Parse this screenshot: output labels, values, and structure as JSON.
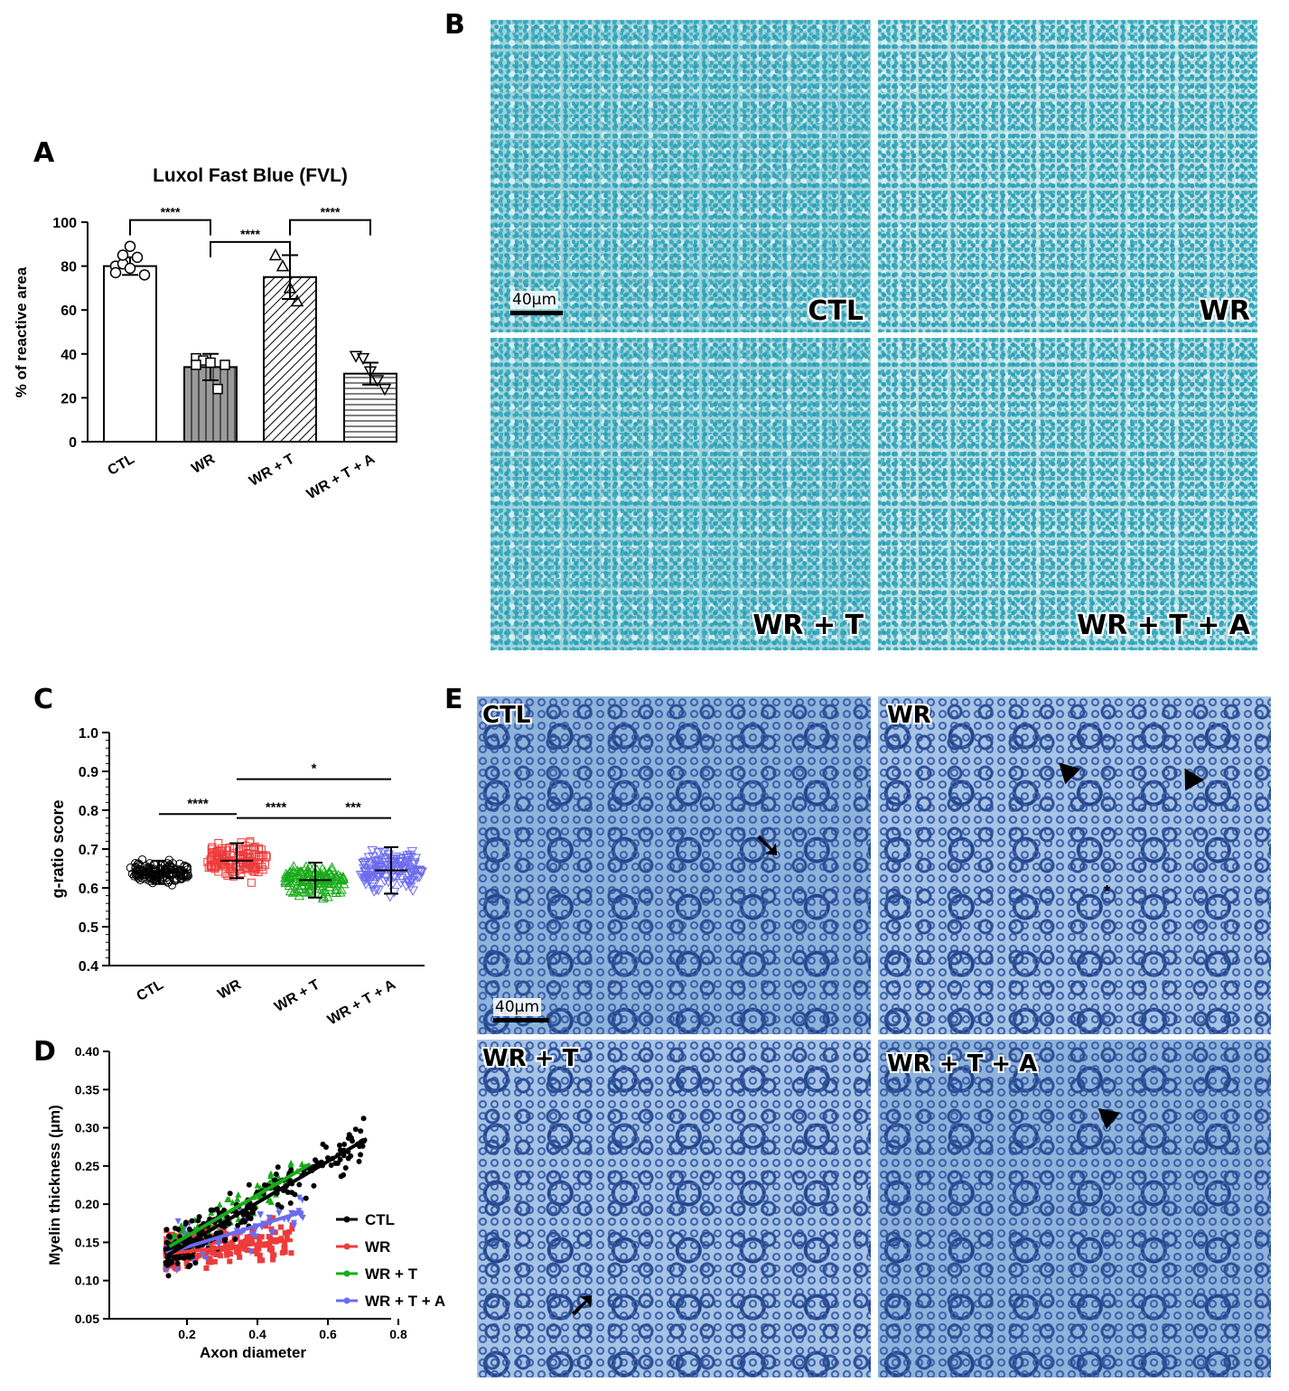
{
  "panels": {
    "A": "A",
    "B": "B",
    "C": "C",
    "D": "D",
    "E": "E"
  },
  "panel_b": {
    "labels": [
      "CTL",
      "WR",
      "WR + T",
      "WR + T + A"
    ],
    "scale": "40μm"
  },
  "panel_e": {
    "labels": [
      "CTL",
      "WR",
      "WR + T",
      "WR + T + A"
    ],
    "scale": "40μm",
    "asterisk": "*"
  },
  "colors": {
    "ctl": "#000000",
    "wr": "#ee3b3b",
    "wrt": "#1aaa1a",
    "wrta": "#6b6bf0",
    "stain_b": "#9fd3da",
    "stain_e": "#8fb3db"
  },
  "chart_data": [
    {
      "id": "A",
      "type": "bar",
      "title": "Luxol Fast Blue (FVL)",
      "ylabel": "% of reactive area",
      "ylim": [
        0,
        100
      ],
      "yticks": [
        "0",
        "20",
        "40",
        "60",
        "80",
        "100"
      ],
      "categories": [
        "CTL",
        "WR",
        "WR + T",
        "WR + T + A"
      ],
      "values": [
        80,
        34,
        75,
        31
      ],
      "errors": [
        4,
        6,
        10,
        5
      ],
      "bar_patterns": [
        "none",
        "vertical",
        "diagonal",
        "horizontal"
      ],
      "points": [
        [
          80,
          81,
          79,
          84,
          76,
          77,
          85,
          89
        ],
        [
          38,
          37,
          36,
          24,
          35,
          35
        ],
        [
          85,
          80,
          70,
          64
        ],
        [
          39,
          38,
          32,
          28,
          24
        ]
      ],
      "significance": [
        {
          "from": 0,
          "to": 1,
          "label": "****"
        },
        {
          "from": 1,
          "to": 2,
          "label": "****"
        },
        {
          "from": 2,
          "to": 3,
          "label": "****"
        }
      ]
    },
    {
      "id": "C",
      "type": "scatter",
      "ylabel": "g-ratio score",
      "ylim": [
        0.4,
        1.0
      ],
      "yticks": [
        "0.4",
        "0.5",
        "0.6",
        "0.7",
        "0.8",
        "0.9",
        "1.0"
      ],
      "categories": [
        "CTL",
        "WR",
        "WR + T",
        "WR + T + A"
      ],
      "series": [
        {
          "name": "CTL",
          "mean": 0.64,
          "sd": 0.03,
          "min": 0.52,
          "max": 0.72
        },
        {
          "name": "WR",
          "mean": 0.67,
          "sd": 0.045,
          "min": 0.57,
          "max": 0.78
        },
        {
          "name": "WR + T",
          "mean": 0.62,
          "sd": 0.045,
          "min": 0.53,
          "max": 0.72
        },
        {
          "name": "WR + T + A",
          "mean": 0.645,
          "sd": 0.06,
          "min": 0.49,
          "max": 0.81
        }
      ],
      "significance": [
        {
          "from": 0,
          "to": 1,
          "label": "****"
        },
        {
          "from": 1,
          "to": 2,
          "label": "****"
        },
        {
          "from": 2,
          "to": 3,
          "label": "***"
        },
        {
          "from": 1,
          "to": 3,
          "label": "*"
        }
      ]
    },
    {
      "id": "D",
      "type": "scatter",
      "xlabel": "Axon diameter",
      "ylabel": "Myelin thickness (μm)",
      "xlim": [
        0.0,
        0.8
      ],
      "ylim": [
        0.05,
        0.4
      ],
      "xticks": [
        "0.2",
        "0.4",
        "0.6",
        "0.8"
      ],
      "yticks": [
        "0.05",
        "0.10",
        "0.15",
        "0.20",
        "0.25",
        "0.30",
        "0.35",
        "0.40"
      ],
      "series": [
        {
          "name": "CTL",
          "slope": 0.27,
          "intercept": 0.094,
          "x_range": [
            0.14,
            0.71
          ],
          "n": 260
        },
        {
          "name": "WR",
          "slope": 0.05,
          "intercept": 0.128,
          "x_range": [
            0.14,
            0.5
          ],
          "n": 200
        },
        {
          "name": "WR + T",
          "slope": 0.27,
          "intercept": 0.104,
          "x_range": [
            0.15,
            0.55
          ],
          "n": 90
        },
        {
          "name": "WR + T + A",
          "slope": 0.14,
          "intercept": 0.116,
          "x_range": [
            0.14,
            0.53
          ],
          "n": 90
        }
      ],
      "legend_position": "right"
    }
  ]
}
